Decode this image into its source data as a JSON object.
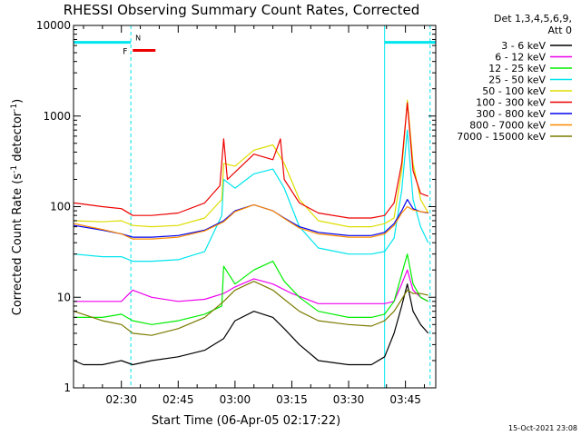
{
  "chart_data": {
    "type": "line",
    "title": "RHESSI Observing Summary Count Rates, Corrected",
    "xlabel": "Start Time (06-Apr-05 02:17:22)",
    "ylabel": "Corrected Count Rate (s",
    "ylabel_sup": "-1",
    "ylabel_mid": " detector",
    "ylabel_end": ")",
    "yscale": "log",
    "ylim": [
      1,
      10000
    ],
    "xlim": [
      "02:17:22",
      "03:53:00"
    ],
    "yticks": [
      1,
      10,
      100,
      1000,
      10000
    ],
    "ytick_labels": [
      "1",
      "10",
      "100",
      "1000",
      "10000"
    ],
    "xticks": [
      "02:30",
      "02:45",
      "03:00",
      "03:15",
      "03:30",
      "03:45"
    ],
    "grid": false,
    "legend_position": "right",
    "legend_header": [
      "Det 1,3,4,5,6,9,",
      "Att 0"
    ],
    "flag_labels": {
      "night": "N",
      "flare": "F"
    },
    "flags": [
      {
        "flag": "night",
        "start": "02:17:22",
        "end": "02:32:30",
        "level": 6500,
        "color": "#00e5ee"
      },
      {
        "flag": "night",
        "start": "03:39:30",
        "end": "03:53:00",
        "level": 6500,
        "color": "#00e5ee"
      },
      {
        "flag": "flare",
        "start": "02:33:00",
        "end": "02:39:00",
        "level": 5300,
        "color": "#ee0000"
      }
    ],
    "vertical_markers": [
      {
        "time": "02:17:22",
        "style": "solid",
        "color": "#00e5ee"
      },
      {
        "time": "02:32:30",
        "style": "dashed",
        "color": "#00e5ee"
      },
      {
        "time": "03:39:30",
        "style": "solid",
        "color": "#00e5ee"
      },
      {
        "time": "03:51:30",
        "style": "dashed",
        "color": "#00e5ee"
      }
    ],
    "series": [
      {
        "name": "3 - 6 keV",
        "color": "#000000",
        "x": [
          "02:17:30",
          "02:20:00",
          "02:25:00",
          "02:30:00",
          "02:33:00",
          "02:38:00",
          "02:45:00",
          "02:52:00",
          "02:57:00",
          "03:00:00",
          "03:05:00",
          "03:10:00",
          "03:13:00",
          "03:17:00",
          "03:22:00",
          "03:30:00",
          "03:36:00",
          "03:39:30",
          "03:42:00",
          "03:44:00",
          "03:45:30",
          "03:47:00",
          "03:49:00",
          "03:51:00"
        ],
        "values": [
          2.0,
          1.8,
          1.8,
          2.0,
          1.8,
          2.0,
          2.2,
          2.6,
          3.5,
          5.5,
          7.0,
          6.0,
          4.5,
          3.0,
          2.0,
          1.8,
          1.8,
          2.2,
          4.0,
          8.0,
          14.0,
          7.0,
          5.0,
          4.0
        ]
      },
      {
        "name": "6 - 12 keV",
        "color": "#ee00ee",
        "x": [
          "02:17:30",
          "02:25:00",
          "02:30:00",
          "02:33:00",
          "02:38:00",
          "02:45:00",
          "02:52:00",
          "02:57:00",
          "03:00:00",
          "03:05:00",
          "03:10:00",
          "03:15:00",
          "03:22:00",
          "03:30:00",
          "03:36:00",
          "03:39:30",
          "03:42:00",
          "03:44:00",
          "03:45:30",
          "03:47:00",
          "03:49:00",
          "03:51:00"
        ],
        "values": [
          9.0,
          9.0,
          9.0,
          12.0,
          10.0,
          9.0,
          9.5,
          11.0,
          13.0,
          16.0,
          14.0,
          11.0,
          8.5,
          8.5,
          8.5,
          8.5,
          9.0,
          14.0,
          20.0,
          12.0,
          10.0,
          9.0
        ]
      },
      {
        "name": "12 - 25 keV",
        "color": "#00ee00",
        "x": [
          "02:17:30",
          "02:25:00",
          "02:30:00",
          "02:33:00",
          "02:38:00",
          "02:45:00",
          "02:52:00",
          "02:56:30",
          "02:57:00",
          "03:00:00",
          "03:05:00",
          "03:10:00",
          "03:13:00",
          "03:17:00",
          "03:22:00",
          "03:30:00",
          "03:36:00",
          "03:39:30",
          "03:42:00",
          "03:44:00",
          "03:45:30",
          "03:47:00",
          "03:49:00",
          "03:51:00"
        ],
        "values": [
          6.0,
          6.0,
          6.5,
          5.5,
          5.0,
          5.5,
          6.5,
          8.0,
          22.0,
          14.0,
          20.0,
          25.0,
          15.0,
          10.0,
          7.0,
          6.0,
          6.0,
          6.5,
          9.0,
          18.0,
          30.0,
          14.0,
          10.0,
          9.0
        ]
      },
      {
        "name": "25 - 50 keV",
        "color": "#00e5ee",
        "x": [
          "02:17:30",
          "02:25:00",
          "02:30:00",
          "02:33:00",
          "02:38:00",
          "02:45:00",
          "02:52:00",
          "02:56:30",
          "02:57:00",
          "03:00:00",
          "03:05:00",
          "03:10:00",
          "03:13:00",
          "03:17:00",
          "03:22:00",
          "03:30:00",
          "03:36:00",
          "03:39:30",
          "03:42:00",
          "03:44:00",
          "03:45:30",
          "03:47:00",
          "03:49:00",
          "03:51:00"
        ],
        "values": [
          30.0,
          28.0,
          28.0,
          25.0,
          25.0,
          26.0,
          32.0,
          80.0,
          200.0,
          160.0,
          230.0,
          260.0,
          160.0,
          60.0,
          35.0,
          30.0,
          30.0,
          32.0,
          45.0,
          150.0,
          700.0,
          120.0,
          60.0,
          40.0
        ]
      },
      {
        "name": "50 - 100 keV",
        "color": "#dddd00",
        "x": [
          "02:17:30",
          "02:25:00",
          "02:30:00",
          "02:33:00",
          "02:38:00",
          "02:45:00",
          "02:52:00",
          "02:56:30",
          "02:57:00",
          "03:00:00",
          "03:05:00",
          "03:10:00",
          "03:13:00",
          "03:17:00",
          "03:22:00",
          "03:30:00",
          "03:36:00",
          "03:39:30",
          "03:42:00",
          "03:44:00",
          "03:45:30",
          "03:47:00",
          "03:49:00",
          "03:51:00"
        ],
        "values": [
          70.0,
          68.0,
          70.0,
          62.0,
          60.0,
          62.0,
          75.0,
          120.0,
          300.0,
          280.0,
          420.0,
          480.0,
          300.0,
          120.0,
          70.0,
          60.0,
          60.0,
          65.0,
          75.0,
          250.0,
          1500.0,
          300.0,
          120.0,
          85.0
        ]
      },
      {
        "name": "100 - 300 keV",
        "color": "#ee0000",
        "x": [
          "02:17:30",
          "02:25:00",
          "02:30:00",
          "02:33:00",
          "02:38:00",
          "02:45:00",
          "02:52:00",
          "02:56:00",
          "02:57:00",
          "02:58:00",
          "03:00:00",
          "03:05:00",
          "03:10:00",
          "03:12:00",
          "03:13:00",
          "03:17:00",
          "03:22:00",
          "03:30:00",
          "03:36:00",
          "03:39:30",
          "03:42:00",
          "03:44:00",
          "03:45:30",
          "03:47:00",
          "03:49:00",
          "03:51:00"
        ],
        "values": [
          110.0,
          100.0,
          95.0,
          80.0,
          80.0,
          85.0,
          110.0,
          170.0,
          560.0,
          200.0,
          240.0,
          380.0,
          330.0,
          560.0,
          200.0,
          110.0,
          85.0,
          75.0,
          75.0,
          80.0,
          110.0,
          300.0,
          1400.0,
          250.0,
          140.0,
          130.0
        ]
      },
      {
        "name": "300 - 800 keV",
        "color": "#0000ee",
        "x": [
          "02:17:30",
          "02:25:00",
          "02:30:00",
          "02:33:00",
          "02:38:00",
          "02:45:00",
          "02:52:00",
          "02:57:00",
          "03:00:00",
          "03:05:00",
          "03:10:00",
          "03:13:00",
          "03:17:00",
          "03:22:00",
          "03:30:00",
          "03:36:00",
          "03:39:30",
          "03:42:00",
          "03:44:00",
          "03:45:30",
          "03:47:00",
          "03:49:00",
          "03:51:00"
        ],
        "values": [
          62.0,
          55.0,
          50.0,
          46.0,
          46.0,
          48.0,
          55.0,
          70.0,
          90.0,
          105.0,
          90.0,
          75.0,
          60.0,
          52.0,
          48.0,
          48.0,
          52.0,
          65.0,
          90.0,
          120.0,
          95.0,
          88.0,
          85.0
        ]
      },
      {
        "name": "800 - 7000 keV",
        "color": "#ff8c00",
        "x": [
          "02:17:30",
          "02:25:00",
          "02:30:00",
          "02:33:00",
          "02:38:00",
          "02:45:00",
          "02:52:00",
          "02:57:00",
          "03:00:00",
          "03:05:00",
          "03:10:00",
          "03:13:00",
          "03:17:00",
          "03:22:00",
          "03:30:00",
          "03:36:00",
          "03:39:30",
          "03:42:00",
          "03:44:00",
          "03:45:30",
          "03:47:00",
          "03:49:00",
          "03:51:00"
        ],
        "values": [
          65.0,
          56.0,
          50.0,
          44.0,
          44.0,
          46.0,
          54.0,
          68.0,
          88.0,
          105.0,
          90.0,
          74.0,
          58.0,
          50.0,
          46.0,
          46.0,
          50.0,
          62.0,
          85.0,
          100.0,
          92.0,
          88.0,
          86.0
        ]
      },
      {
        "name": "7000 - 15000 keV",
        "color": "#7a7a00",
        "x": [
          "02:17:30",
          "02:25:00",
          "02:30:00",
          "02:33:00",
          "02:38:00",
          "02:45:00",
          "02:52:00",
          "02:57:00",
          "03:00:00",
          "03:05:00",
          "03:10:00",
          "03:13:00",
          "03:17:00",
          "03:22:00",
          "03:30:00",
          "03:36:00",
          "03:39:30",
          "03:42:00",
          "03:44:00",
          "03:45:30",
          "03:47:00",
          "03:49:00",
          "03:51:00"
        ],
        "values": [
          7.0,
          5.5,
          5.0,
          4.0,
          3.8,
          4.5,
          6.0,
          9.0,
          12.0,
          15.0,
          12.0,
          9.5,
          7.0,
          5.5,
          5.0,
          4.8,
          5.5,
          7.0,
          9.5,
          12.0,
          11.0,
          11.0,
          10.5
        ]
      }
    ]
  },
  "footer": {
    "timestamp": "15-Oct-2021 23:08"
  }
}
